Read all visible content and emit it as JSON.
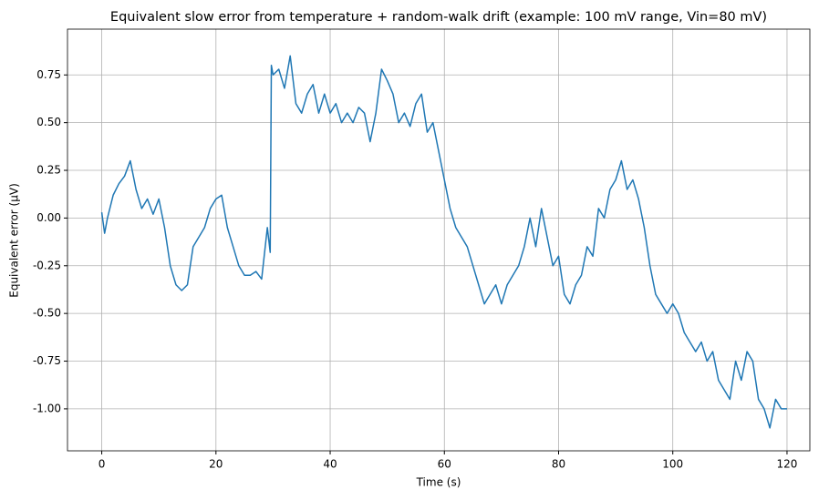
{
  "chart_data": {
    "type": "line",
    "title": "Equivalent slow error from temperature + random-walk drift (example: 100 mV range, Vin=80 mV)",
    "x_label": "Time (s)",
    "y_label": "Equivalent error (µV)",
    "x": [
      0,
      0.5,
      1,
      2,
      3,
      4,
      5,
      6,
      7,
      8,
      9,
      10,
      11,
      12,
      13,
      14,
      15,
      16,
      17,
      18,
      19,
      20,
      21,
      22,
      23,
      24,
      25,
      26,
      27,
      28,
      29,
      29.5,
      29.7,
      30,
      31,
      32,
      33,
      34,
      35,
      36,
      37,
      38,
      39,
      40,
      41,
      42,
      43,
      44,
      45,
      46,
      47,
      48,
      49,
      50,
      51,
      52,
      53,
      54,
      55,
      56,
      57,
      58,
      59,
      60,
      61,
      62,
      63,
      64,
      65,
      66,
      67,
      68,
      69,
      70,
      71,
      72,
      73,
      74,
      75,
      76,
      77,
      78,
      79,
      80,
      81,
      82,
      83,
      84,
      85,
      86,
      87,
      88,
      89,
      90,
      91,
      92,
      93,
      94,
      95,
      96,
      97,
      98,
      99,
      100,
      101,
      102,
      103,
      104,
      105,
      106,
      107,
      108,
      109,
      110,
      111,
      112,
      113,
      114,
      115,
      116,
      117,
      118,
      119,
      120
    ],
    "series": [
      {
        "name": "error",
        "color": "#1f77b4",
        "values": [
          0.03,
          -0.08,
          0.0,
          0.12,
          0.18,
          0.22,
          0.3,
          0.15,
          0.05,
          0.1,
          0.02,
          0.1,
          -0.05,
          -0.25,
          -0.35,
          -0.38,
          -0.35,
          -0.15,
          -0.1,
          -0.05,
          0.05,
          0.1,
          0.12,
          -0.05,
          -0.15,
          -0.25,
          -0.3,
          -0.3,
          -0.28,
          -0.32,
          -0.05,
          -0.18,
          0.8,
          0.75,
          0.78,
          0.68,
          0.85,
          0.6,
          0.55,
          0.65,
          0.7,
          0.55,
          0.65,
          0.55,
          0.6,
          0.5,
          0.55,
          0.5,
          0.58,
          0.55,
          0.4,
          0.55,
          0.78,
          0.72,
          0.65,
          0.5,
          0.55,
          0.48,
          0.6,
          0.65,
          0.45,
          0.5,
          0.35,
          0.2,
          0.05,
          -0.05,
          -0.1,
          -0.15,
          -0.25,
          -0.35,
          -0.45,
          -0.4,
          -0.35,
          -0.45,
          -0.35,
          -0.3,
          -0.25,
          -0.15,
          0.0,
          -0.15,
          0.05,
          -0.1,
          -0.25,
          -0.2,
          -0.4,
          -0.45,
          -0.35,
          -0.3,
          -0.15,
          -0.2,
          0.05,
          0.0,
          0.15,
          0.2,
          0.3,
          0.15,
          0.2,
          0.1,
          -0.05,
          -0.25,
          -0.4,
          -0.45,
          -0.5,
          -0.45,
          -0.5,
          -0.6,
          -0.65,
          -0.7,
          -0.65,
          -0.75,
          -0.7,
          -0.85,
          -0.9,
          -0.95,
          -0.75,
          -0.85,
          -0.7,
          -0.75,
          -0.95,
          -1.0,
          -1.1,
          -0.95,
          -1.0,
          -1.0
        ]
      }
    ],
    "xlim": [
      -6,
      124
    ],
    "ylim": [
      -1.22,
      0.99
    ],
    "xticks": [
      0,
      20,
      40,
      60,
      80,
      100,
      120
    ],
    "yticks": [
      {
        "value": -1,
        "label": "-1.00"
      },
      {
        "value": -0.75,
        "label": "-0.75"
      },
      {
        "value": -0.5,
        "label": "-0.50"
      },
      {
        "value": -0.25,
        "label": "-0.25"
      },
      {
        "value": 0,
        "label": "0.00"
      },
      {
        "value": 0.25,
        "label": "0.25"
      },
      {
        "value": 0.5,
        "label": "0.50"
      },
      {
        "value": 0.75,
        "label": "0.75"
      }
    ],
    "grid": true
  }
}
